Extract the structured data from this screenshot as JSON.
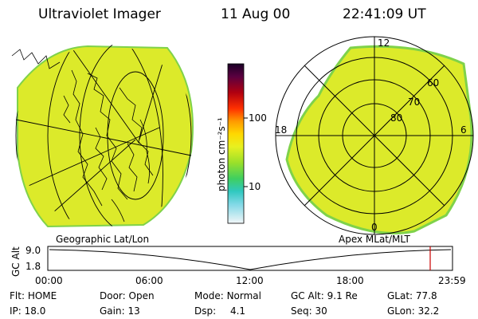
{
  "header": {
    "instrument": "Ultraviolet Imager",
    "date": "11 Aug 00",
    "time": "22:41:09 UT"
  },
  "colors": {
    "aurora_fill": "#dcea2a",
    "aurora_edge": "#7fd24a",
    "grid_lines": "#000000",
    "timeline_marker": "#cc0000"
  },
  "left_map": {
    "label": "Geographic Lat/Lon",
    "projection": "geographic"
  },
  "right_map": {
    "label": "Apex MLat/MLT",
    "mlt_labels": [
      "12",
      "18",
      "6",
      "0"
    ],
    "mlat_labels": [
      "60",
      "70",
      "80"
    ]
  },
  "colorbar": {
    "unit_label": "photon cm⁻²s⁻¹",
    "tick_labels": [
      "100",
      "10"
    ],
    "ticks": [
      100,
      10
    ]
  },
  "altitude_panel": {
    "axis_label": "GC Alt",
    "y_ticks": [
      "9.0",
      "1.8"
    ],
    "x_ticks": [
      "00:00",
      "06:00",
      "12:00",
      "18:00",
      "23:59"
    ],
    "marker_time": "22:41"
  },
  "info": {
    "flt_label": "Flt:",
    "flt_value": "HOME",
    "ip_label": "IP:",
    "ip_value": "18.0",
    "door_label": "Door:",
    "door_value": "Open",
    "gain_label": "Gain:",
    "gain_value": "13",
    "mode_label": "Mode:",
    "mode_value": "Normal",
    "dsp_label": "Dsp:",
    "dsp_value": "4.1",
    "gcalt_label": "GC Alt:",
    "gcalt_value": "9.1 Re",
    "seq_label": "Seq:",
    "seq_value": "30",
    "glat_label": "GLat:",
    "glat_value": "77.8",
    "glon_label": "GLon:",
    "glon_value": "32.2"
  }
}
